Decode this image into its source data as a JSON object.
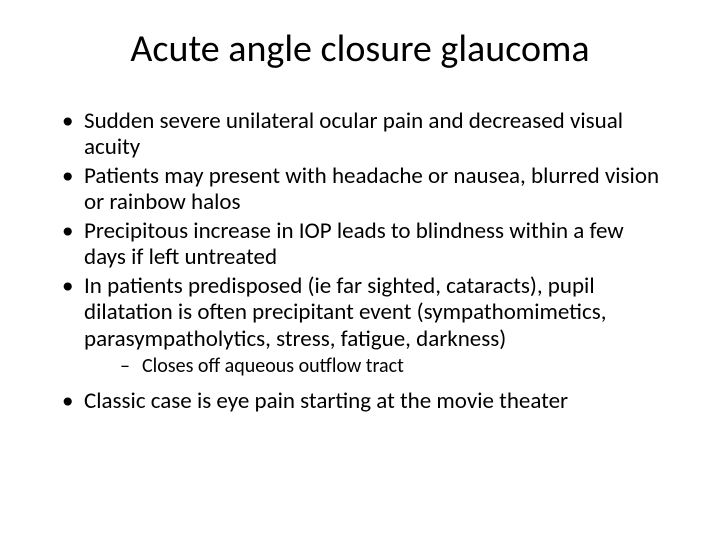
{
  "type": "slide",
  "background_color": "#ffffff",
  "text_color": "#000000",
  "title": {
    "text": "Acute angle closure glaucoma",
    "fontsize": 38,
    "align": "center"
  },
  "body_fontsize_level1": 23,
  "body_fontsize_level2": 20,
  "bullets": [
    {
      "level": 1,
      "text": "Sudden severe unilateral ocular pain and decreased visual acuity"
    },
    {
      "level": 1,
      "text": "Patients may present with headache or nausea, blurred vision or rainbow halos"
    },
    {
      "level": 1,
      "text": "Precipitous increase in IOP leads to blindness within a few days if left untreated"
    },
    {
      "level": 1,
      "text": "In patients predisposed (ie far sighted, cataracts), pupil dilatation is often precipitant event (sympathomimetics, parasympatholytics, stress, fatigue, darkness)"
    },
    {
      "level": 2,
      "text": "Closes off aqueous outflow tract"
    },
    {
      "level": 1,
      "text": "Classic case is eye pain starting at the movie theater"
    }
  ]
}
